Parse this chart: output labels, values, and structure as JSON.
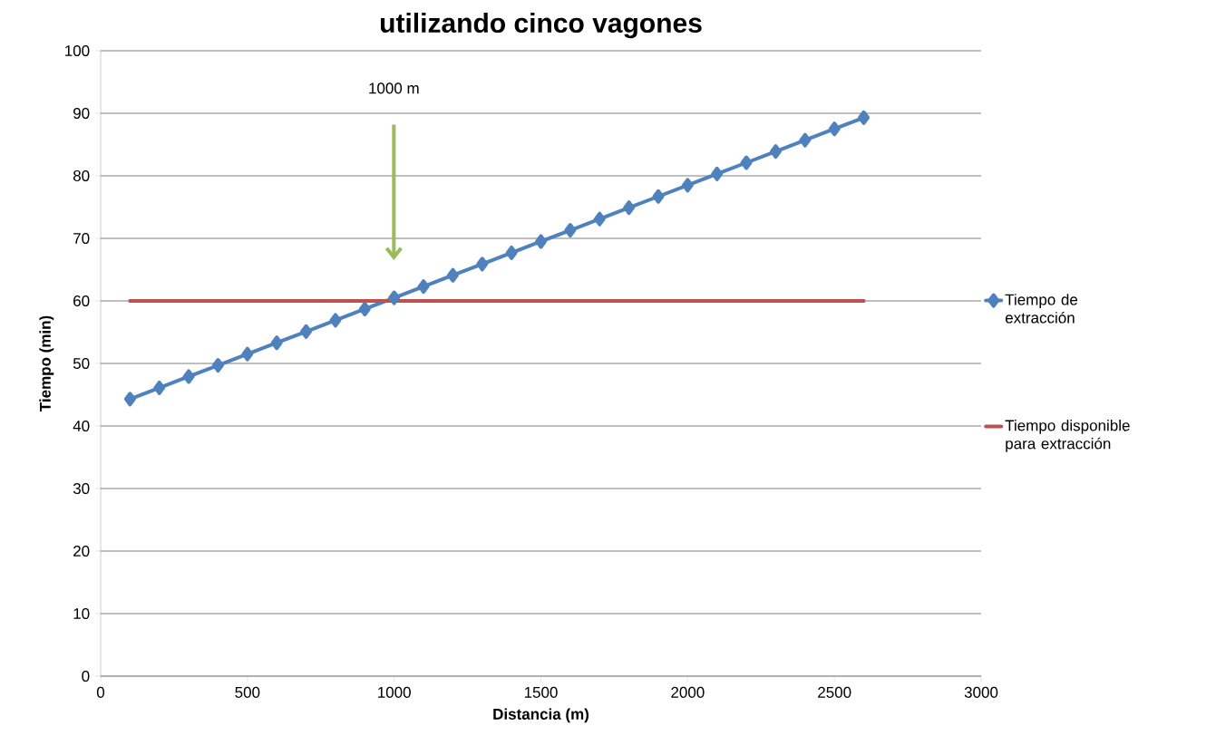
{
  "chart_data": {
    "type": "line",
    "title": "utilizando cinco vagones",
    "xlabel": "Distancia (m)",
    "ylabel": "Tiempo (min)",
    "x": [
      100,
      200,
      300,
      400,
      500,
      600,
      700,
      800,
      900,
      1000,
      1100,
      1200,
      1300,
      1400,
      1500,
      1600,
      1700,
      1800,
      1900,
      2000,
      2100,
      2200,
      2300,
      2400,
      2500,
      2600
    ],
    "series": [
      {
        "name": "Tiempo de extracción",
        "color": "#4f81bd",
        "marker": "diamond",
        "values": [
          44.3,
          46.1,
          47.9,
          49.7,
          51.5,
          53.3,
          55.1,
          56.9,
          58.7,
          60.5,
          62.3,
          64.1,
          65.9,
          67.7,
          69.5,
          71.3,
          73.1,
          74.9,
          76.7,
          78.5,
          80.3,
          82.1,
          83.9,
          85.7,
          87.5,
          89.3
        ]
      },
      {
        "name": "Tiempo disponible para extracción",
        "color": "#c0504d",
        "marker": "none",
        "values": [
          60,
          60,
          60,
          60,
          60,
          60,
          60,
          60,
          60,
          60,
          60,
          60,
          60,
          60,
          60,
          60,
          60,
          60,
          60,
          60,
          60,
          60,
          60,
          60,
          60,
          60
        ]
      }
    ],
    "xlim": [
      0,
      3000
    ],
    "xticks": [
      0,
      500,
      1000,
      1500,
      2000,
      2500,
      3000
    ],
    "ylim": [
      0,
      100
    ],
    "yticks": [
      0,
      10,
      20,
      30,
      40,
      50,
      60,
      70,
      80,
      90,
      100
    ],
    "grid": "y",
    "legend": "right",
    "annotations": [
      "1000 m"
    ]
  }
}
